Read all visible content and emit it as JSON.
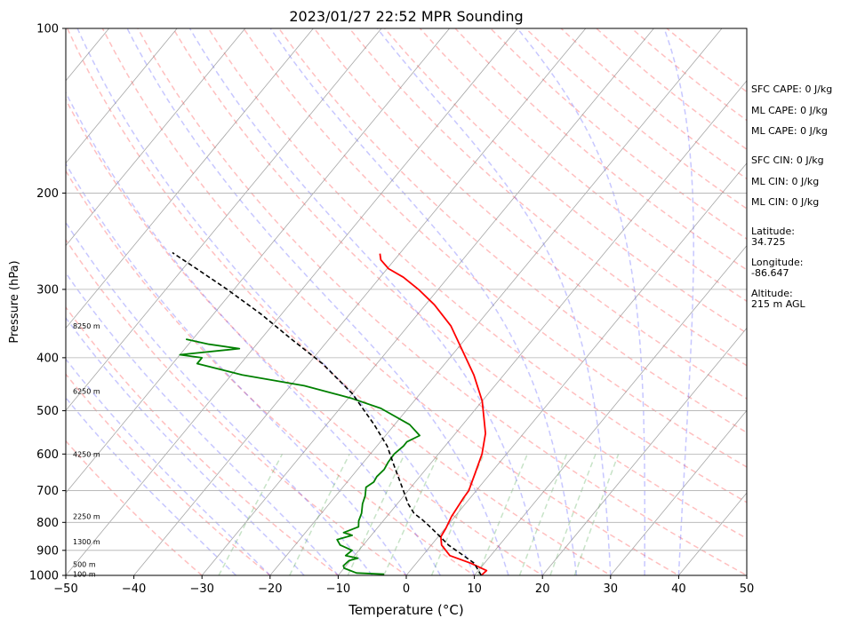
{
  "chart_data": {
    "type": "line",
    "title": "2023/01/27 22:52 MPR Sounding",
    "xlabel": "Temperature (°C)",
    "ylabel": "Pressure (hPa)",
    "xlim": [
      -50,
      50
    ],
    "ylim": [
      1000,
      100
    ],
    "y_scale": "log",
    "skew": "skew-T",
    "grid": true,
    "x_ticks": [
      "−50",
      "−40",
      "−30",
      "−20",
      "−10",
      "0",
      "10",
      "20",
      "30",
      "40",
      "50"
    ],
    "x_tick_values": [
      -50,
      -40,
      -30,
      -20,
      -10,
      0,
      10,
      20,
      30,
      40,
      50
    ],
    "y_ticks": [
      "100",
      "200",
      "300",
      "400",
      "500",
      "600",
      "700",
      "800",
      "900",
      "1000"
    ],
    "y_tick_values": [
      100,
      200,
      300,
      400,
      500,
      600,
      700,
      800,
      900,
      1000
    ],
    "height_labels": [
      {
        "text": "8250 m",
        "p": 350
      },
      {
        "text": "6250 m",
        "p": 460
      },
      {
        "text": "4250 m",
        "p": 600
      },
      {
        "text": "2250 m",
        "p": 780
      },
      {
        "text": "1300 m",
        "p": 868
      },
      {
        "text": "500 m",
        "p": 955
      },
      {
        "text": "100 m",
        "p": 995
      }
    ],
    "series": [
      {
        "role": "temperature",
        "color": "#ff0000",
        "points": [
          [
            11,
            1000
          ],
          [
            11.2,
            980
          ],
          [
            8,
            950
          ],
          [
            4,
            920
          ],
          [
            1.5,
            880
          ],
          [
            0.4,
            850
          ],
          [
            0.1,
            820
          ],
          [
            -0.5,
            780
          ],
          [
            -1,
            720
          ],
          [
            -1.1,
            700
          ],
          [
            -2.3,
            650
          ],
          [
            -3.6,
            600
          ],
          [
            -5.6,
            550
          ],
          [
            -7.4,
            520
          ],
          [
            -10,
            480
          ],
          [
            -14.4,
            430
          ],
          [
            -18.8,
            390
          ],
          [
            -23.7,
            350
          ],
          [
            -28.7,
            320
          ],
          [
            -32.9,
            300
          ],
          [
            -36.6,
            285
          ],
          [
            -39.8,
            275
          ],
          [
            -42,
            265
          ],
          [
            -42.9,
            258
          ]
        ]
      },
      {
        "role": "dewpoint",
        "color": "#008000",
        "points": [
          [
            -3.4,
            995
          ],
          [
            -7.6,
            990
          ],
          [
            -10,
            970
          ],
          [
            -10.4,
            960
          ],
          [
            -10.2,
            940
          ],
          [
            -9.2,
            930
          ],
          [
            -11.3,
            920
          ],
          [
            -11,
            900
          ],
          [
            -13.4,
            880
          ],
          [
            -14.5,
            860
          ],
          [
            -12.8,
            845
          ],
          [
            -14.4,
            835
          ],
          [
            -12.9,
            815
          ],
          [
            -13.6,
            795
          ],
          [
            -14.1,
            770
          ],
          [
            -15.1,
            740
          ],
          [
            -15.7,
            715
          ],
          [
            -16.6,
            690
          ],
          [
            -16.1,
            675
          ],
          [
            -16.3,
            660
          ],
          [
            -16.1,
            640
          ],
          [
            -16.4,
            620
          ],
          [
            -16.5,
            600
          ],
          [
            -16.1,
            580
          ],
          [
            -16.1,
            570
          ],
          [
            -15,
            555
          ],
          [
            -17.8,
            530
          ],
          [
            -24,
            495
          ],
          [
            -29.4,
            475
          ],
          [
            -32.7,
            465
          ],
          [
            -38,
            450
          ],
          [
            -48.4,
            430
          ],
          [
            -56.4,
            410
          ],
          [
            -56.4,
            400
          ],
          [
            -60,
            395
          ],
          [
            -52,
            385
          ],
          [
            -57,
            378
          ],
          [
            -61,
            370
          ]
        ]
      },
      {
        "role": "parcel",
        "color": "#000000",
        "style": "dashed",
        "points": [
          [
            11,
            1000
          ],
          [
            8.5,
            950
          ],
          [
            6,
            920
          ],
          [
            2.5,
            880
          ],
          [
            0.3,
            850
          ],
          [
            -2,
            820
          ],
          [
            -4.5,
            790
          ],
          [
            -6.4,
            770
          ],
          [
            -8.4,
            740
          ],
          [
            -10.7,
            700
          ],
          [
            -15.1,
            630
          ],
          [
            -18.5,
            580
          ],
          [
            -23,
            530
          ],
          [
            -30,
            465
          ],
          [
            -38,
            410
          ],
          [
            -45.5,
            370
          ],
          [
            -53,
            333
          ],
          [
            -61,
            300
          ],
          [
            -68,
            275
          ],
          [
            -73.5,
            257
          ]
        ]
      }
    ],
    "reference_lines": {
      "isotherms_color": "#808080",
      "dry_adiabats_color": "#ff0000",
      "moist_adiabats_color": "#0000ff",
      "mixing_ratio_color": "#008000"
    }
  },
  "side_panel": {
    "sfc_cape": "SFC CAPE: 0 J/kg",
    "ml_cape_1": "ML CAPE: 0 J/kg",
    "ml_cape_2": "ML CAPE: 0 J/kg",
    "sfc_cin": "SFC CIN: 0 J/kg",
    "ml_cin_1": "ML CIN: 0 J/kg",
    "ml_cin_2": "ML CIN: 0 J/kg",
    "latitude_label": "Latitude:",
    "latitude_value": "34.725",
    "longitude_label": "Longitude:",
    "longitude_value": "-86.647",
    "altitude_label": "Altitude:",
    "altitude_value": "215 m AGL"
  }
}
